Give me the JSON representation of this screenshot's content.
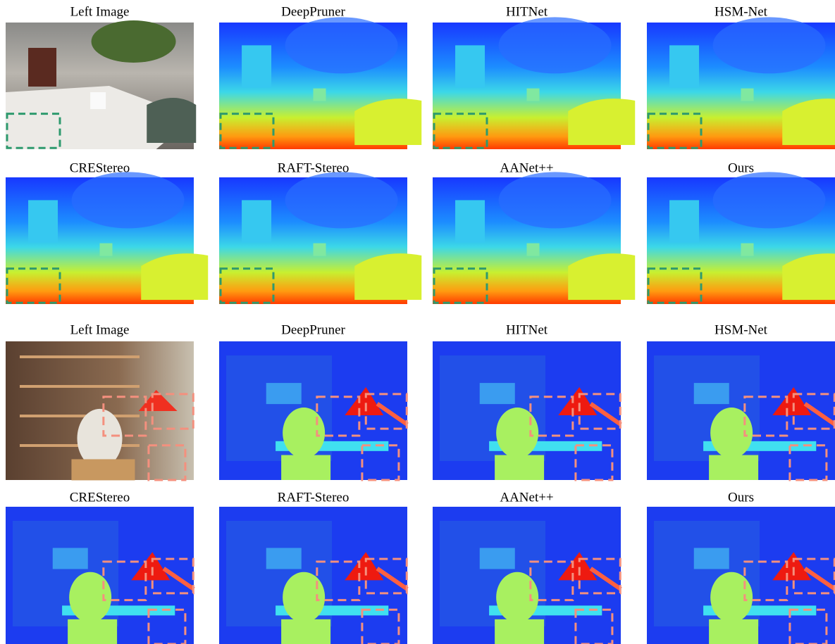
{
  "figure": {
    "rows": [
      {
        "panels": [
          {
            "label": "Left Image"
          },
          {
            "label": "DeepPruner"
          },
          {
            "label": "HITNet"
          },
          {
            "label": "HSM-Net"
          }
        ]
      },
      {
        "panels": [
          {
            "label": "CREStereo"
          },
          {
            "label": "RAFT-Stereo"
          },
          {
            "label": "AANet++"
          },
          {
            "label": "Ours"
          }
        ]
      },
      {
        "panels": [
          {
            "label": "Left Image"
          },
          {
            "label": "DeepPruner"
          },
          {
            "label": "HITNet"
          },
          {
            "label": "HSM-Net"
          }
        ]
      },
      {
        "panels": [
          {
            "label": "CREStereo"
          },
          {
            "label": "RAFT-Stereo"
          },
          {
            "label": "AANet++"
          },
          {
            "label": "Ours"
          }
        ]
      }
    ]
  }
}
